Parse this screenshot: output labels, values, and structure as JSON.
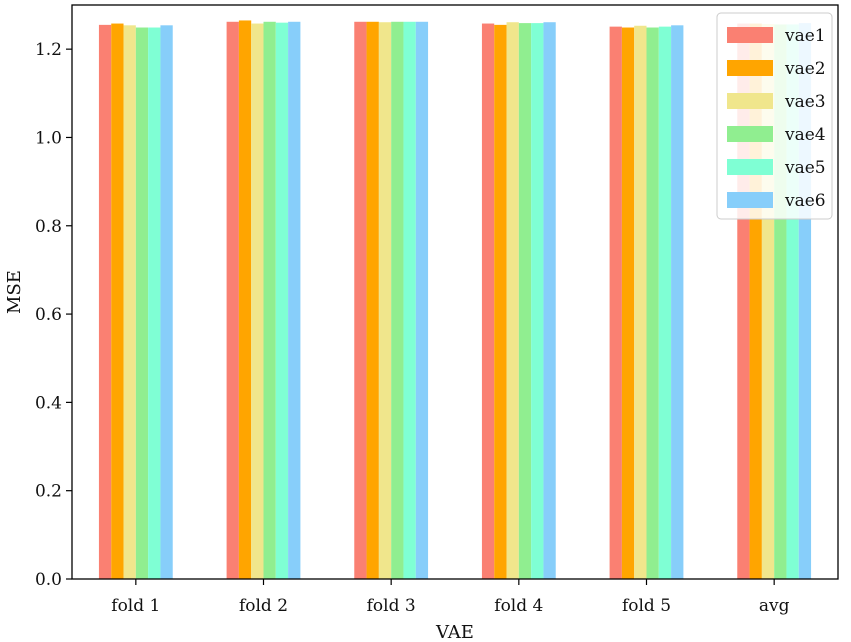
{
  "chart_data": {
    "type": "bar",
    "title": "",
    "xlabel": "VAE",
    "ylabel": "MSE",
    "ylim": [
      0,
      1.3
    ],
    "yticks": [
      "0.0",
      "0.2",
      "0.4",
      "0.6",
      "0.8",
      "1.0",
      "1.2"
    ],
    "categories": [
      "fold 1",
      "fold 2",
      "fold 3",
      "fold 4",
      "fold 5",
      "avg"
    ],
    "legend_position": "top-right",
    "grid": false,
    "series": [
      {
        "name": "vae1",
        "color": "#fa8072",
        "values": [
          1.255,
          1.262,
          1.262,
          1.258,
          1.251,
          1.258
        ]
      },
      {
        "name": "vae2",
        "color": "#ffa500",
        "values": [
          1.258,
          1.265,
          1.262,
          1.255,
          1.249,
          1.258
        ]
      },
      {
        "name": "vae3",
        "color": "#f0e68c",
        "values": [
          1.254,
          1.258,
          1.261,
          1.261,
          1.253,
          1.257
        ]
      },
      {
        "name": "vae4",
        "color": "#90ee90",
        "values": [
          1.249,
          1.262,
          1.262,
          1.259,
          1.249,
          1.256
        ]
      },
      {
        "name": "vae5",
        "color": "#7fffd4",
        "values": [
          1.249,
          1.26,
          1.262,
          1.259,
          1.251,
          1.256
        ]
      },
      {
        "name": "vae6",
        "color": "#87cefa",
        "values": [
          1.254,
          1.262,
          1.262,
          1.261,
          1.254,
          1.259
        ]
      }
    ]
  }
}
